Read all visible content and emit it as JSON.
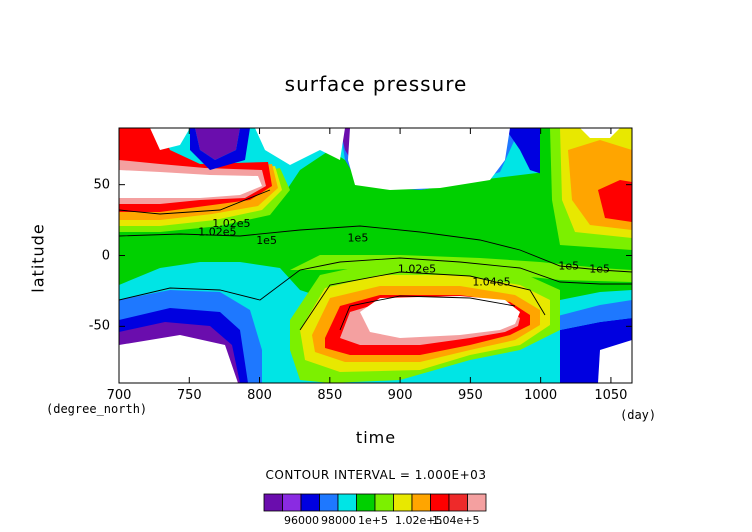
{
  "chart_data": {
    "type": "heatmap",
    "title": "surface pressure",
    "xlabel": "time",
    "ylabel": "latitude",
    "x_unit_left": "(degree_north)",
    "x_unit_right": "(day)",
    "xlim": [
      700,
      1065
    ],
    "ylim": [
      -90,
      90
    ],
    "x_ticks": [
      "700",
      "750",
      "800",
      "850",
      "900",
      "950",
      "1000",
      "1050"
    ],
    "y_ticks": [
      "50",
      "0",
      "-50"
    ],
    "y_tick_values": [
      50,
      0,
      -50
    ],
    "contour_interval_text": "CONTOUR INTERVAL = 1.000E+03",
    "contour_labels": [
      {
        "text": "1.02e5",
        "x": 780,
        "y": 20
      },
      {
        "text": "1.02e5",
        "x": 770,
        "y": 14
      },
      {
        "text": "1e5",
        "x": 805,
        "y": 8
      },
      {
        "text": "1e5",
        "x": 870,
        "y": 10
      },
      {
        "text": "1.02e5",
        "x": 912,
        "y": -12
      },
      {
        "text": "1.04e5",
        "x": 965,
        "y": -21
      },
      {
        "text": "1e5",
        "x": 1020,
        "y": -10
      },
      {
        "text": "1e5",
        "x": 1042,
        "y": -12
      }
    ],
    "colorbar": {
      "levels": [
        95000,
        96000,
        97000,
        98000,
        99000,
        100000,
        101000,
        102000,
        103000,
        104000,
        105000,
        106000
      ],
      "colors": [
        "#6a0dad",
        "#8a2be2",
        "#0000e0",
        "#1e78ff",
        "#00e5e5",
        "#00d000",
        "#7cf000",
        "#e8e800",
        "#ffa500",
        "#ff0000",
        "#ee2a2a",
        "#f4a0a0"
      ],
      "tick_labels": [
        "96000",
        "98000",
        "1e+5",
        "1.02e+5",
        "1.04e+5"
      ]
    },
    "missing_color": "#ffffff"
  }
}
